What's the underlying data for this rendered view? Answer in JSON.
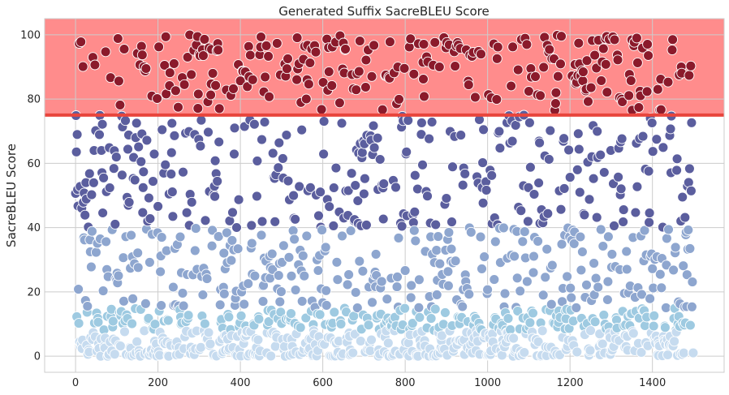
{
  "chart_data": {
    "type": "scatter",
    "title": "Generated Suffix SacreBLEU Score",
    "xlabel": "",
    "ylabel": "SacreBLEU Score",
    "xlim": [
      -75,
      1574
    ],
    "ylim": [
      -5,
      105
    ],
    "x_ticks": [
      0,
      200,
      400,
      600,
      800,
      1000,
      1200,
      1400
    ],
    "y_ticks": [
      0,
      20,
      40,
      60,
      80,
      100
    ],
    "grid": true,
    "legend": "none",
    "threshold": {
      "value": 75,
      "color": "#e8453c"
    },
    "highlight_band": {
      "from": 75,
      "to": 105,
      "color": "#ff8c8c"
    },
    "n_points": 1500,
    "colors": {
      "very_low": "#c6dbef",
      "low": "#9ecae1",
      "mid_low": "#8ea6cf",
      "mid_high": "#5b5e9e",
      "high": "#8b1a2b"
    },
    "series": [
      {
        "range": [
          0,
          15
        ],
        "approx_count": 640,
        "color": "#c6dbef"
      },
      {
        "range": [
          15,
          40
        ],
        "approx_count": 300,
        "color": "#8ea6cf"
      },
      {
        "range": [
          40,
          75
        ],
        "approx_count": 300,
        "color": "#5b5e9e"
      },
      {
        "range": [
          75,
          100
        ],
        "approx_count": 260,
        "color": "#8b1a2b"
      }
    ]
  }
}
